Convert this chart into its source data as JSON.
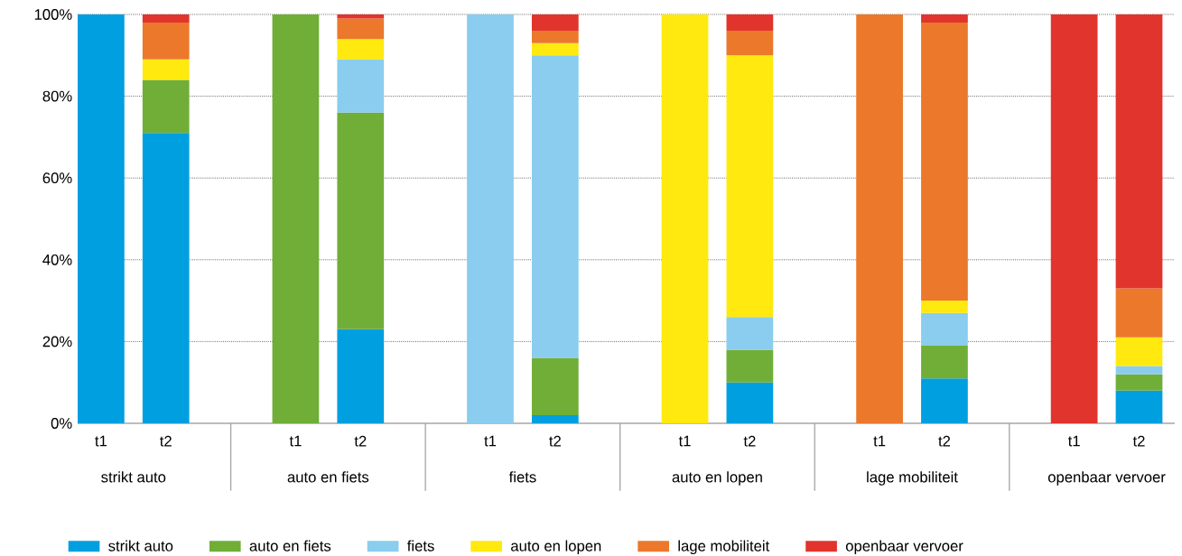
{
  "chart_data": {
    "type": "bar",
    "stacked": true,
    "categories": [
      "t1",
      "t2",
      "t1",
      "t2",
      "t1",
      "t2",
      "t1",
      "t2",
      "t1",
      "t2",
      "t1",
      "t2"
    ],
    "series": [
      {
        "name": "strikt auto",
        "color": "#009fe0",
        "values": [
          100,
          71,
          0,
          23,
          0,
          2,
          0,
          10,
          0,
          11,
          0,
          8
        ]
      },
      {
        "name": "auto en fiets",
        "color": "#70ae38",
        "values": [
          0,
          13,
          100,
          53,
          0,
          14,
          0,
          8,
          0,
          8,
          0,
          4
        ]
      },
      {
        "name": "fiets",
        "color": "#8acdee",
        "values": [
          0,
          0,
          0,
          13,
          100,
          74,
          0,
          8,
          0,
          8,
          0,
          2
        ]
      },
      {
        "name": "auto en lopen",
        "color": "#ffe90f",
        "values": [
          0,
          5,
          0,
          5,
          0,
          3,
          100,
          64,
          0,
          3,
          0,
          7
        ]
      },
      {
        "name": "lage mobiliteit",
        "color": "#eb782b",
        "values": [
          0,
          9,
          0,
          5,
          0,
          3,
          0,
          6,
          100,
          68,
          0,
          12
        ]
      },
      {
        "name": "openbaar vervoer",
        "color": "#e0342d",
        "values": [
          0,
          2,
          0,
          1,
          0,
          4,
          0,
          4,
          0,
          2,
          100,
          67
        ]
      }
    ],
    "annotations": [
      "strikt auto",
      "auto en fiets",
      "fiets",
      "auto en lopen",
      "lage mobiliteit",
      "openbaar vervoer"
    ],
    "ylim": [
      0,
      100
    ],
    "yticks": [
      {
        "value": 0,
        "label": "0%"
      },
      {
        "value": 20,
        "label": "20%"
      },
      {
        "value": 40,
        "label": "40%"
      },
      {
        "value": 60,
        "label": "60%"
      },
      {
        "value": 80,
        "label": "80%"
      },
      {
        "value": 100,
        "label": "100%"
      }
    ],
    "grid": "y",
    "legend": "bottom"
  }
}
